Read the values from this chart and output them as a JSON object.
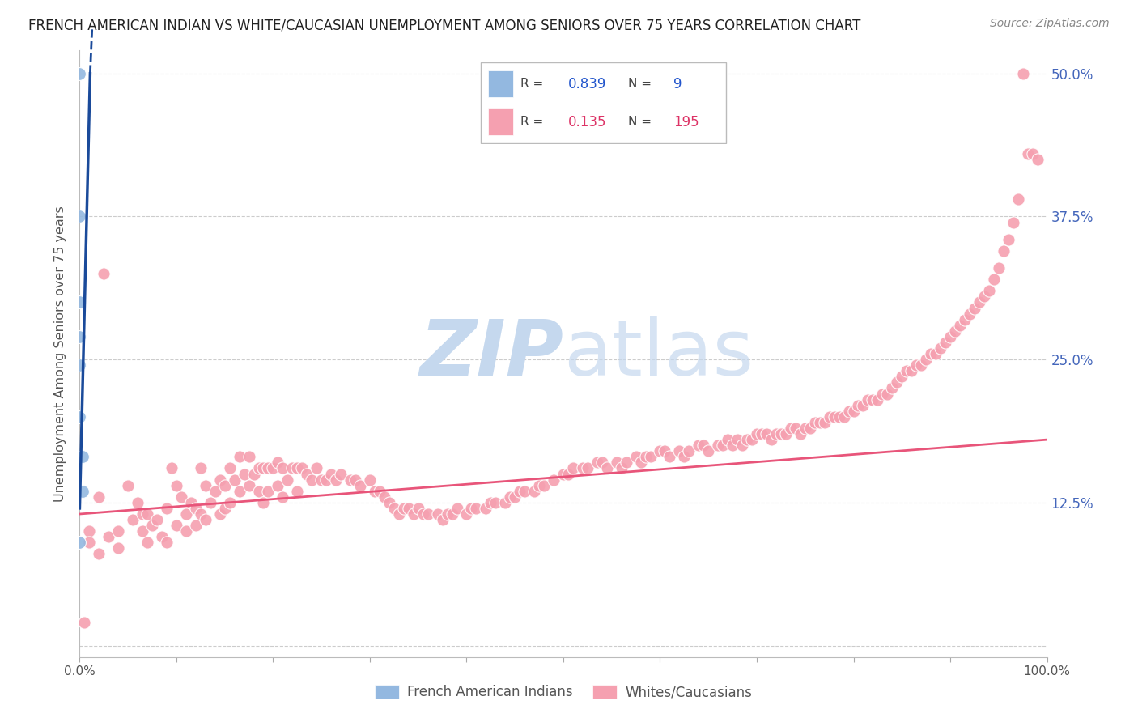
{
  "title": "FRENCH AMERICAN INDIAN VS WHITE/CAUCASIAN UNEMPLOYMENT AMONG SENIORS OVER 75 YEARS CORRELATION CHART",
  "source": "Source: ZipAtlas.com",
  "ylabel": "Unemployment Among Seniors over 75 years",
  "watermark": "ZIPatlas",
  "xlim": [
    0,
    1.0
  ],
  "ylim": [
    -0.01,
    0.52
  ],
  "ytick_positions": [
    0.0,
    0.125,
    0.25,
    0.375,
    0.5
  ],
  "ytick_labels_right": [
    "",
    "12.5%",
    "25.0%",
    "37.5%",
    "50.0%"
  ],
  "legend_blue_label": "French American Indians",
  "legend_pink_label": "Whites/Caucasians",
  "r_blue": 0.839,
  "n_blue": 9,
  "r_pink": 0.135,
  "n_pink": 195,
  "blue_color": "#93B8E0",
  "pink_color": "#F5A0B0",
  "blue_line_color": "#1A4A9A",
  "pink_line_color": "#E8557A",
  "grid_color": "#CCCCCC",
  "title_color": "#222222",
  "watermark_color": "#C5D8EE",
  "blue_points_x": [
    0.0,
    0.0,
    0.0,
    0.0,
    0.0,
    0.0,
    0.003,
    0.003,
    0.0
  ],
  "blue_points_y": [
    0.5,
    0.375,
    0.3,
    0.27,
    0.245,
    0.2,
    0.165,
    0.135,
    0.09
  ],
  "pink_points_x": [
    0.005,
    0.01,
    0.01,
    0.02,
    0.02,
    0.025,
    0.03,
    0.04,
    0.04,
    0.05,
    0.055,
    0.06,
    0.065,
    0.065,
    0.07,
    0.07,
    0.075,
    0.08,
    0.085,
    0.09,
    0.09,
    0.095,
    0.1,
    0.1,
    0.105,
    0.11,
    0.11,
    0.115,
    0.12,
    0.12,
    0.125,
    0.125,
    0.13,
    0.13,
    0.135,
    0.14,
    0.145,
    0.145,
    0.15,
    0.15,
    0.155,
    0.155,
    0.16,
    0.165,
    0.165,
    0.17,
    0.175,
    0.175,
    0.18,
    0.185,
    0.185,
    0.19,
    0.19,
    0.195,
    0.195,
    0.2,
    0.205,
    0.205,
    0.21,
    0.21,
    0.215,
    0.22,
    0.225,
    0.225,
    0.23,
    0.235,
    0.24,
    0.245,
    0.25,
    0.255,
    0.26,
    0.265,
    0.27,
    0.28,
    0.285,
    0.29,
    0.3,
    0.305,
    0.31,
    0.315,
    0.32,
    0.325,
    0.33,
    0.335,
    0.34,
    0.345,
    0.35,
    0.355,
    0.36,
    0.37,
    0.375,
    0.38,
    0.385,
    0.39,
    0.4,
    0.405,
    0.41,
    0.42,
    0.425,
    0.43,
    0.44,
    0.445,
    0.45,
    0.455,
    0.46,
    0.47,
    0.475,
    0.48,
    0.49,
    0.5,
    0.505,
    0.51,
    0.52,
    0.525,
    0.535,
    0.54,
    0.545,
    0.555,
    0.56,
    0.565,
    0.575,
    0.58,
    0.585,
    0.59,
    0.6,
    0.605,
    0.61,
    0.62,
    0.625,
    0.63,
    0.64,
    0.645,
    0.65,
    0.66,
    0.665,
    0.67,
    0.675,
    0.68,
    0.685,
    0.69,
    0.695,
    0.7,
    0.705,
    0.71,
    0.715,
    0.72,
    0.725,
    0.73,
    0.735,
    0.74,
    0.745,
    0.75,
    0.755,
    0.76,
    0.765,
    0.77,
    0.775,
    0.78,
    0.785,
    0.79,
    0.795,
    0.8,
    0.805,
    0.81,
    0.815,
    0.82,
    0.825,
    0.83,
    0.835,
    0.84,
    0.845,
    0.85,
    0.855,
    0.86,
    0.865,
    0.87,
    0.875,
    0.88,
    0.885,
    0.89,
    0.895,
    0.9,
    0.905,
    0.91,
    0.915,
    0.92,
    0.925,
    0.93,
    0.935,
    0.94,
    0.945,
    0.95,
    0.955,
    0.96,
    0.965,
    0.97,
    0.975,
    0.98,
    0.985,
    0.99
  ],
  "pink_points_y": [
    0.02,
    0.1,
    0.09,
    0.13,
    0.08,
    0.325,
    0.095,
    0.085,
    0.1,
    0.14,
    0.11,
    0.125,
    0.115,
    0.1,
    0.115,
    0.09,
    0.105,
    0.11,
    0.095,
    0.12,
    0.09,
    0.155,
    0.14,
    0.105,
    0.13,
    0.115,
    0.1,
    0.125,
    0.12,
    0.105,
    0.155,
    0.115,
    0.14,
    0.11,
    0.125,
    0.135,
    0.145,
    0.115,
    0.14,
    0.12,
    0.155,
    0.125,
    0.145,
    0.165,
    0.135,
    0.15,
    0.165,
    0.14,
    0.15,
    0.155,
    0.135,
    0.155,
    0.125,
    0.155,
    0.135,
    0.155,
    0.16,
    0.14,
    0.155,
    0.13,
    0.145,
    0.155,
    0.155,
    0.135,
    0.155,
    0.15,
    0.145,
    0.155,
    0.145,
    0.145,
    0.15,
    0.145,
    0.15,
    0.145,
    0.145,
    0.14,
    0.145,
    0.135,
    0.135,
    0.13,
    0.125,
    0.12,
    0.115,
    0.12,
    0.12,
    0.115,
    0.12,
    0.115,
    0.115,
    0.115,
    0.11,
    0.115,
    0.115,
    0.12,
    0.115,
    0.12,
    0.12,
    0.12,
    0.125,
    0.125,
    0.125,
    0.13,
    0.13,
    0.135,
    0.135,
    0.135,
    0.14,
    0.14,
    0.145,
    0.15,
    0.15,
    0.155,
    0.155,
    0.155,
    0.16,
    0.16,
    0.155,
    0.16,
    0.155,
    0.16,
    0.165,
    0.16,
    0.165,
    0.165,
    0.17,
    0.17,
    0.165,
    0.17,
    0.165,
    0.17,
    0.175,
    0.175,
    0.17,
    0.175,
    0.175,
    0.18,
    0.175,
    0.18,
    0.175,
    0.18,
    0.18,
    0.185,
    0.185,
    0.185,
    0.18,
    0.185,
    0.185,
    0.185,
    0.19,
    0.19,
    0.185,
    0.19,
    0.19,
    0.195,
    0.195,
    0.195,
    0.2,
    0.2,
    0.2,
    0.2,
    0.205,
    0.205,
    0.21,
    0.21,
    0.215,
    0.215,
    0.215,
    0.22,
    0.22,
    0.225,
    0.23,
    0.235,
    0.24,
    0.24,
    0.245,
    0.245,
    0.25,
    0.255,
    0.255,
    0.26,
    0.265,
    0.27,
    0.275,
    0.28,
    0.285,
    0.29,
    0.295,
    0.3,
    0.305,
    0.31,
    0.32,
    0.33,
    0.345,
    0.355,
    0.37,
    0.39,
    0.5,
    0.43,
    0.43,
    0.425
  ],
  "pink_slope": 0.065,
  "pink_intercept": 0.115,
  "blue_slope": 35.0,
  "blue_intercept": 0.12
}
